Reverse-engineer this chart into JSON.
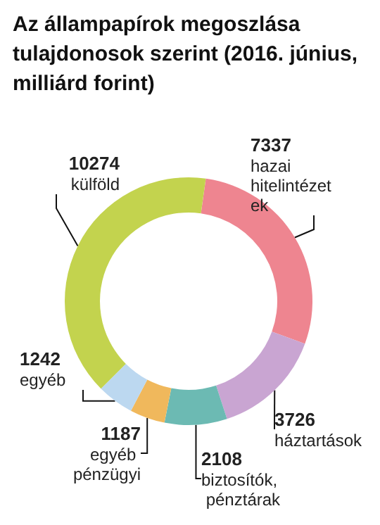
{
  "chart_data": {
    "type": "donut",
    "title": "Az állampapírok megoszlása tulajdonosok szerint (2016. június, milliárd forint)",
    "categories": [
      "hazai hitelintézetek",
      "háztartások",
      "biztosítók, pénztárak",
      "egyéb pénzügyi",
      "egyéb",
      "külföld"
    ],
    "values": [
      7337,
      3726,
      2108,
      1187,
      1242,
      10274
    ],
    "colors": [
      "#ee8590",
      "#c9a5d2",
      "#6cbab3",
      "#f0b85c",
      "#bcd8f0",
      "#c3d34e"
    ],
    "data_labels": true,
    "legend": false
  }
}
